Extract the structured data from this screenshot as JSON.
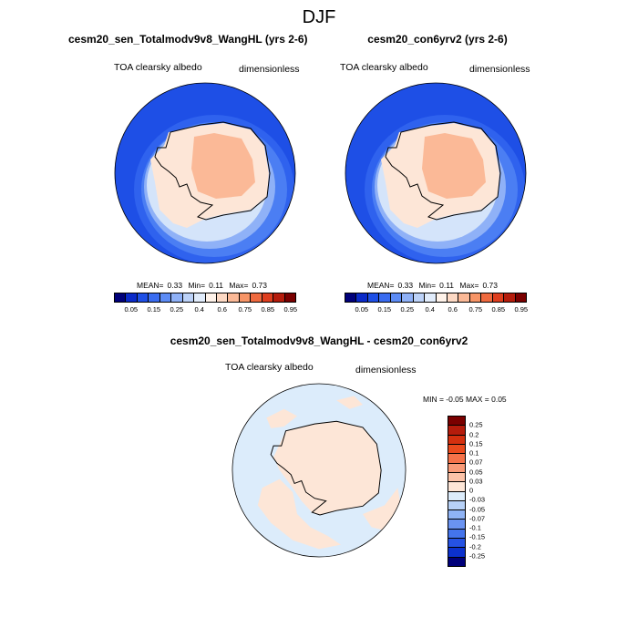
{
  "figure": {
    "season": "DJF",
    "panels": [
      {
        "title": "cesm20_sen_Totalmodv9v8_WangHL (yrs 2-6)",
        "variable": "TOA clearsky albedo",
        "units": "dimensionless",
        "stats": {
          "mean_label": "MEAN=",
          "mean": "0.33",
          "min_label": "Min=",
          "min": "0.11",
          "max_label": "Max=",
          "max": "0.73"
        }
      },
      {
        "title": "cesm20_con6yrv2 (yrs 2-6)",
        "variable": "TOA clearsky albedo",
        "units": "dimensionless",
        "stats": {
          "mean_label": "MEAN=",
          "mean": "0.33",
          "min_label": "Min=",
          "min": "0.11",
          "max_label": "Max=",
          "max": "0.73"
        }
      },
      {
        "title": "cesm20_sen_Totalmodv9v8_WangHL - cesm20_con6yrv2",
        "variable": "TOA clearsky albedo",
        "units": "dimensionless",
        "stats_text": "MIN = -0.05 MAX =  0.05"
      }
    ],
    "albedo_colorbar": {
      "colors": [
        "#00007a",
        "#0a2ac9",
        "#1e4fe6",
        "#3a6cf0",
        "#5d8cf5",
        "#8fb1f7",
        "#bcd2f8",
        "#e1ecfb",
        "#fff3ea",
        "#fdd9c4",
        "#fbb997",
        "#f79567",
        "#ef6a3f",
        "#de3e1e",
        "#b51c0c",
        "#7a0000"
      ],
      "ticks": [
        "0.05",
        "0.15",
        "0.25",
        "0.4",
        "0.6",
        "0.75",
        "0.85",
        "0.95"
      ]
    },
    "diff_colorbar": {
      "colors": [
        "#7a0000",
        "#b51c0c",
        "#d4300f",
        "#ea4a1d",
        "#f57249",
        "#f99b78",
        "#fcc3a8",
        "#fde6d7",
        "#dcecfb",
        "#b7d1f7",
        "#8fb3f5",
        "#6a93f1",
        "#4474ec",
        "#2552e3",
        "#0c31cd",
        "#00007a"
      ],
      "ticks": [
        "0.25",
        "0.2",
        "0.15",
        "0.1",
        "0.07",
        "0.05",
        "0.03",
        "0",
        "-0.03",
        "-0.05",
        "-0.07",
        "-0.1",
        "-0.15",
        "-0.2",
        "-0.25"
      ]
    }
  }
}
